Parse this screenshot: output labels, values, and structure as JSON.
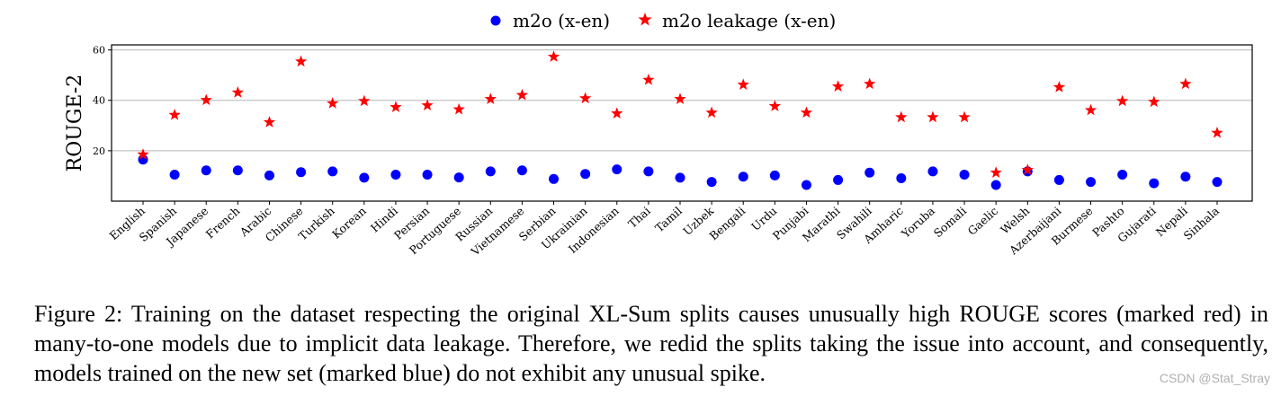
{
  "chart_data": {
    "type": "scatter",
    "ylabel": "ROUGE-2",
    "xlabel": "",
    "ylim": [
      0,
      62
    ],
    "yticks": [
      20,
      40,
      60
    ],
    "grid": "horizontal",
    "legend_position": "top-center",
    "categories": [
      "English",
      "Spanish",
      "Japanese",
      "French",
      "Arabic",
      "Chinese",
      "Turkish",
      "Korean",
      "Hindi",
      "Persian",
      "Portuguese",
      "Russian",
      "Vietnamese",
      "Serbian",
      "Ukrainian",
      "Indonesian",
      "Thai",
      "Tamil",
      "Uzbek",
      "Bengali",
      "Urdu",
      "Punjabi",
      "Marathi",
      "Swahili",
      "Amharic",
      "Yoruba",
      "Somali",
      "Gaelic",
      "Welsh",
      "Azerbaijani",
      "Burmese",
      "Pashto",
      "Gujarati",
      "Nepali",
      "Sinhala"
    ],
    "series": [
      {
        "name": "m2o (x-en)",
        "marker": "circle",
        "color": "#0000ff",
        "values": [
          16.5,
          10.5,
          12.2,
          12.2,
          10.2,
          11.5,
          11.8,
          9.3,
          10.5,
          10.5,
          9.4,
          11.8,
          12.2,
          8.8,
          10.8,
          12.6,
          11.8,
          9.3,
          7.6,
          9.7,
          10.2,
          6.4,
          8.4,
          11.3,
          9.1,
          11.8,
          10.5,
          6.4,
          11.8,
          8.4,
          7.6,
          10.5,
          7.1,
          9.7,
          7.6
        ]
      },
      {
        "name": "m2o leakage (x-en)",
        "marker": "star",
        "color": "#ff0000",
        "values": [
          18.5,
          34.2,
          40.1,
          43.1,
          31.3,
          55.4,
          38.8,
          39.7,
          37.3,
          38.0,
          36.4,
          40.5,
          42.1,
          57.3,
          40.8,
          34.8,
          48.1,
          40.5,
          35.1,
          46.2,
          37.7,
          35.1,
          45.5,
          46.5,
          33.3,
          33.3,
          33.3,
          11.3,
          12.4,
          45.2,
          36.1,
          39.7,
          39.4,
          46.5,
          27.1
        ]
      }
    ]
  },
  "caption": "Figure 2: Training on the dataset respecting the original XL-Sum splits causes unusually high ROUGE scores (marked red) in many-to-one models due to implicit data leakage. Therefore, we redid the splits taking the issue into account, and consequently, models trained on the new set (marked blue) do not exhibit any unusual spike.",
  "watermark": "CSDN @Stat_Stray"
}
